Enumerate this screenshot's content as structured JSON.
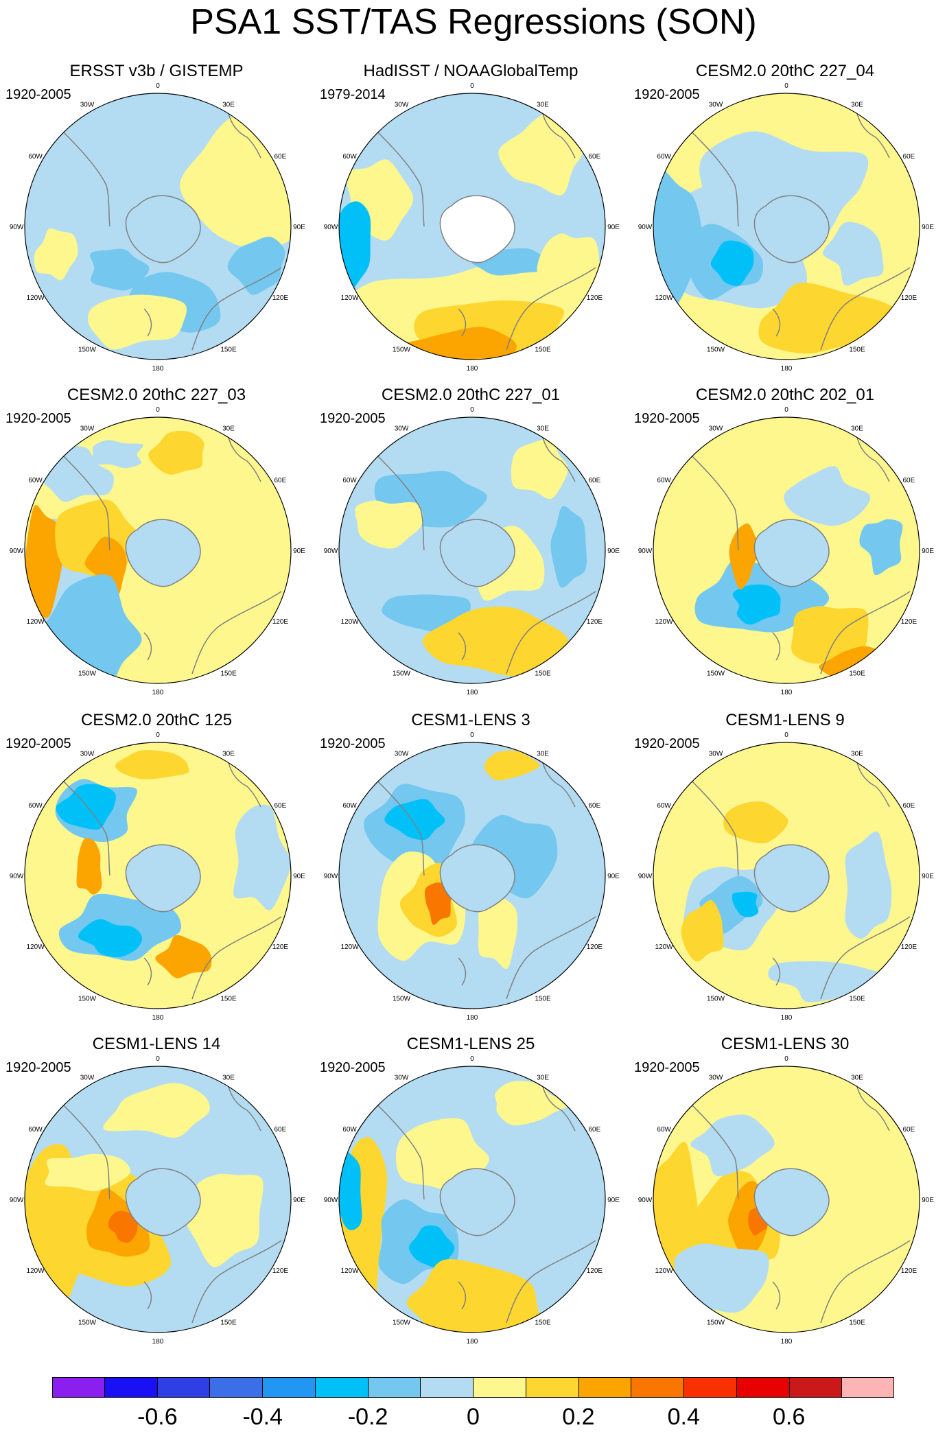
{
  "title": "PSA1 SST/TAS Regressions (SON)",
  "lon_labels": [
    "0",
    "30E",
    "60E",
    "90E",
    "120E",
    "150E",
    "180",
    "150W",
    "120W",
    "90W",
    "60W",
    "30W"
  ],
  "panels": [
    {
      "title": "ERSST v3b / GISTEMP",
      "period": "1920-2005"
    },
    {
      "title": "HadISST / NOAAGlobalTemp",
      "period": "1979-2014"
    },
    {
      "title": "CESM2.0 20thC 227_04",
      "period": "1920-2005"
    },
    {
      "title": "CESM2.0 20thC 227_03",
      "period": "1920-2005"
    },
    {
      "title": "CESM2.0 20thC 227_01",
      "period": "1920-2005"
    },
    {
      "title": "CESM2.0 20thC 202_01",
      "period": "1920-2005"
    },
    {
      "title": "CESM2.0 20thC 125",
      "period": "1920-2005"
    },
    {
      "title": "CESM1-LENS 3",
      "period": "1920-2005"
    },
    {
      "title": "CESM1-LENS 9",
      "period": "1920-2005"
    },
    {
      "title": "CESM1-LENS 14",
      "period": "1920-2005"
    },
    {
      "title": "CESM1-LENS 25",
      "period": "1920-2005"
    },
    {
      "title": "CESM1-LENS 30",
      "period": "1920-2005"
    }
  ],
  "colorbar": {
    "colors": [
      "#8a1ff0",
      "#1a10f5",
      "#2f3fe6",
      "#3a6fe8",
      "#2196f3",
      "#00c0f8",
      "#74c8f0",
      "#b3dcf2",
      "#fdf78e",
      "#fdd630",
      "#fca500",
      "#f97600",
      "#fa3000",
      "#e80000",
      "#cb1818",
      "#fcb4b4"
    ],
    "labels": [
      "-0.6",
      "-0.4",
      "-0.2",
      "0",
      "0.2",
      "0.4",
      "0.6"
    ]
  },
  "land_color": "#ffffff",
  "coast_color": "#808080"
}
